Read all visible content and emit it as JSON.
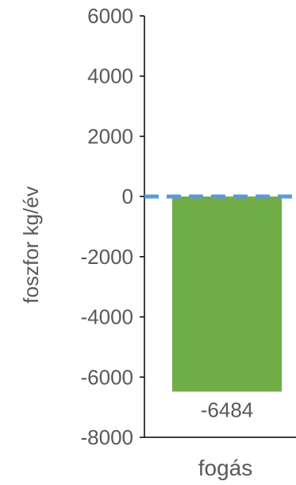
{
  "chart_data": {
    "type": "bar",
    "categories": [
      "fogás"
    ],
    "series": [
      {
        "values": [
          -6484
        ],
        "color": "#70ad47"
      }
    ],
    "data_labels": [
      "-6484"
    ],
    "ylabel": "foszfor kg/év",
    "xlabel": "",
    "ylim": [
      -8000,
      6000
    ],
    "yticks": [
      6000,
      4000,
      2000,
      0,
      -2000,
      -4000,
      -6000,
      -8000
    ],
    "ytick_labels": [
      "6000",
      "4000",
      "2000",
      "0",
      "-2000",
      "-4000",
      "-6000",
      "-8000"
    ],
    "reference_line": {
      "value": 0,
      "style": "dashed",
      "color": "#5b9bd5"
    },
    "grid": false,
    "colors": {
      "axis": "#000000",
      "text": "#595959"
    }
  }
}
